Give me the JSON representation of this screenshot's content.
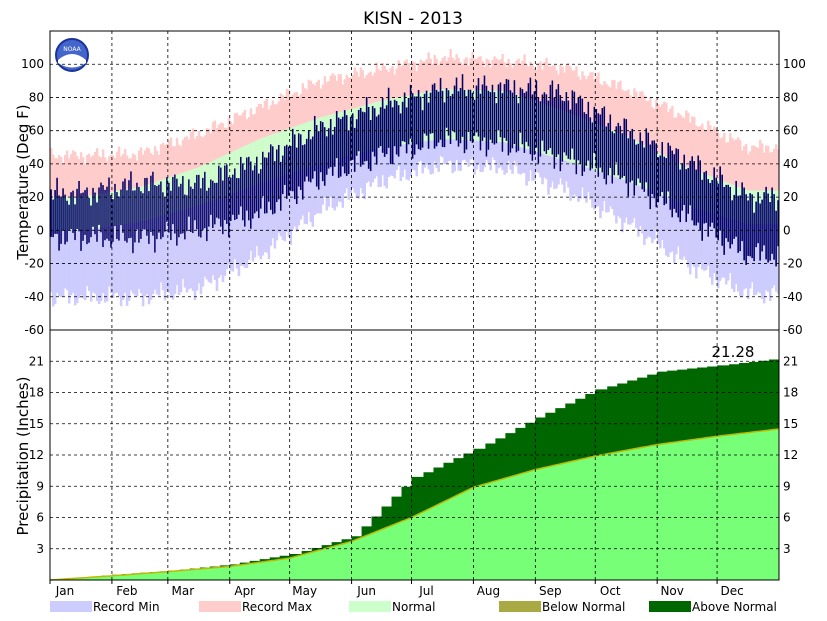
{
  "chart_data": {
    "title": "KISN - 2013",
    "temperature_panel": {
      "type": "bar",
      "ylabel": "Temperature (Deg F)",
      "ylim": [
        -60,
        120
      ],
      "yticks": [
        100,
        80,
        60,
        40,
        20,
        0,
        -20,
        -40,
        -60
      ],
      "grid": true,
      "monthly_summary": {
        "months": [
          "Jan",
          "Feb",
          "Mar",
          "Apr",
          "May",
          "Jun",
          "Jul",
          "Aug",
          "Sep",
          "Oct",
          "Nov",
          "Dec"
        ],
        "record_max": [
          45,
          46,
          58,
          74,
          90,
          97,
          104,
          102,
          98,
          85,
          68,
          50
        ],
        "record_min": [
          -40,
          -40,
          -35,
          -15,
          12,
          30,
          40,
          38,
          25,
          5,
          -20,
          -38
        ],
        "normal_high": [
          20,
          26,
          38,
          55,
          68,
          78,
          85,
          84,
          72,
          57,
          38,
          24
        ],
        "normal_low": [
          0,
          5,
          15,
          28,
          40,
          50,
          55,
          53,
          42,
          30,
          15,
          4
        ],
        "observed_high": [
          22,
          28,
          28,
          42,
          62,
          75,
          85,
          86,
          82,
          60,
          42,
          20
        ],
        "observed_low": [
          -4,
          -5,
          0,
          10,
          32,
          45,
          55,
          52,
          43,
          30,
          8,
          -15
        ]
      }
    },
    "precipitation_panel": {
      "type": "area",
      "ylabel": "Precipitation (Inches)",
      "ylim": [
        0,
        24
      ],
      "yticks": [
        21,
        18,
        15,
        12,
        9,
        6,
        3
      ],
      "grid": true,
      "annotation": "21.28",
      "months": [
        "Jan",
        "Feb",
        "Mar",
        "Apr",
        "May",
        "Jun",
        "Jul",
        "Aug",
        "Sep",
        "Oct",
        "Nov",
        "Dec"
      ],
      "cumulative_observed_month_end": [
        0.5,
        0.9,
        1.5,
        2.5,
        4.2,
        9.9,
        12.6,
        15.6,
        18.3,
        20.0,
        20.6,
        21.28
      ],
      "cumulative_normal_month_end": [
        0.4,
        0.8,
        1.3,
        2.1,
        3.7,
        6.0,
        8.9,
        10.6,
        11.9,
        13.0,
        13.8,
        14.5
      ]
    },
    "x_months": [
      "Jan",
      "Feb",
      "Mar",
      "Apr",
      "May",
      "Jun",
      "Jul",
      "Aug",
      "Sep",
      "Oct",
      "Nov",
      "Dec"
    ],
    "legend_placement": "bottom",
    "legend": [
      {
        "label": "Record Min",
        "color": "#ccccff"
      },
      {
        "label": "Record Max",
        "color": "#ffcccc"
      },
      {
        "label": "Normal",
        "color": "#ccffcc"
      },
      {
        "label": "Below Normal",
        "color": "#aaaa44"
      },
      {
        "label": "Above Normal",
        "color": "#006600"
      }
    ],
    "colors": {
      "record_min": "#ccccff",
      "record_max": "#ffcccc",
      "normal_band": "#ccffcc",
      "observed": "#000066",
      "precip_normal": "#77ff77",
      "precip_above": "#006600",
      "precip_line": "#bbbb00"
    },
    "logo": "NOAA"
  }
}
